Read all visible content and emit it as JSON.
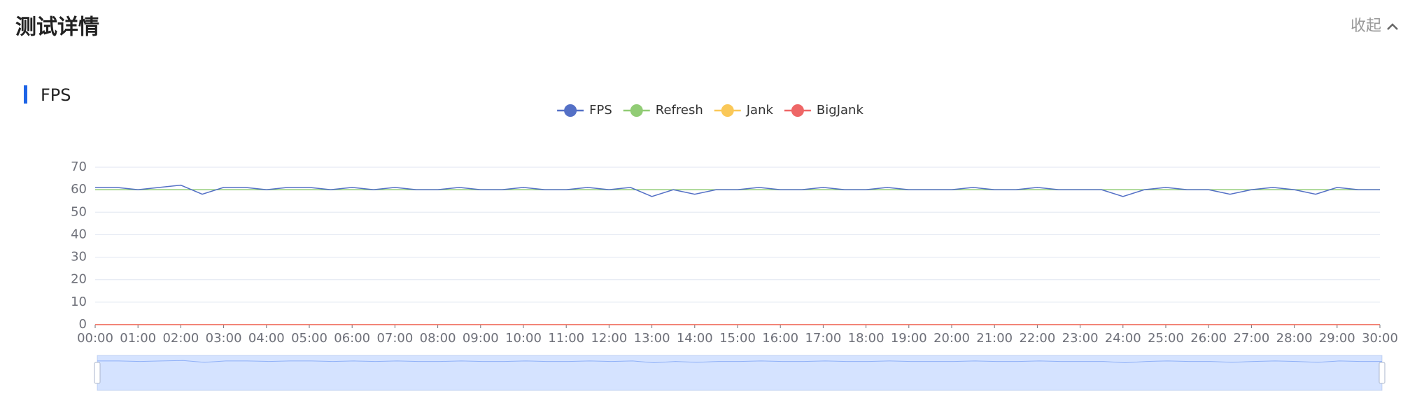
{
  "header": {
    "title": "测试详情",
    "collapse": "收起"
  },
  "section": {
    "title": "FPS"
  },
  "chart_data": {
    "type": "line",
    "x": [
      0,
      30,
      60,
      90,
      120,
      150,
      180,
      210,
      240,
      270,
      300,
      330,
      360,
      390,
      420,
      450,
      480,
      510,
      540,
      570,
      600,
      630,
      660,
      690,
      720,
      750,
      780,
      810,
      840,
      870,
      900,
      930,
      960,
      990,
      1020,
      1050,
      1080,
      1110,
      1140,
      1170,
      1200,
      1230,
      1260,
      1290,
      1320,
      1350,
      1380,
      1410,
      1440,
      1470,
      1500,
      1530,
      1560,
      1590,
      1620,
      1650,
      1680,
      1710,
      1740,
      1770,
      1800
    ],
    "series": [
      {
        "name": "FPS",
        "color": "#5470c6",
        "values": [
          61,
          61,
          60,
          61,
          62,
          58,
          61,
          61,
          60,
          61,
          61,
          60,
          61,
          60,
          61,
          60,
          60,
          61,
          60,
          60,
          61,
          60,
          60,
          61,
          60,
          61,
          57,
          60,
          58,
          60,
          60,
          61,
          60,
          60,
          61,
          60,
          60,
          61,
          60,
          60,
          60,
          61,
          60,
          60,
          61,
          60,
          60,
          60,
          57,
          60,
          61,
          60,
          60,
          58,
          60,
          61,
          60,
          58,
          61,
          60,
          60
        ]
      },
      {
        "name": "Refresh",
        "color": "#91cc75",
        "values": [
          60,
          60,
          60,
          60,
          60,
          60,
          60,
          60,
          60,
          60,
          60,
          60,
          60,
          60,
          60,
          60,
          60,
          60,
          60,
          60,
          60,
          60,
          60,
          60,
          60,
          60,
          60,
          60,
          60,
          60,
          60,
          60,
          60,
          60,
          60,
          60,
          60,
          60,
          60,
          60,
          60,
          60,
          60,
          60,
          60,
          60,
          60,
          60,
          60,
          60,
          60,
          60,
          60,
          60,
          60,
          60,
          60,
          60,
          60,
          60,
          60
        ]
      },
      {
        "name": "Jank",
        "color": "#fac858",
        "values": [
          0,
          0,
          0,
          0,
          0,
          0,
          0,
          0,
          0,
          0,
          0,
          0,
          0,
          0,
          0,
          0,
          0,
          0,
          0,
          0,
          0,
          0,
          0,
          0,
          0,
          0,
          0,
          0,
          0,
          0,
          0,
          0,
          0,
          0,
          0,
          0,
          0,
          0,
          0,
          0,
          0,
          0,
          0,
          0,
          0,
          0,
          0,
          0,
          0,
          0,
          0,
          0,
          0,
          0,
          0,
          0,
          0,
          0,
          0,
          0,
          0
        ]
      },
      {
        "name": "BigJank",
        "color": "#ee6666",
        "values": [
          0,
          0,
          0,
          0,
          0,
          0,
          0,
          0,
          0,
          0,
          0,
          0,
          0,
          0,
          0,
          0,
          0,
          0,
          0,
          0,
          0,
          0,
          0,
          0,
          0,
          0,
          0,
          0,
          0,
          0,
          0,
          0,
          0,
          0,
          0,
          0,
          0,
          0,
          0,
          0,
          0,
          0,
          0,
          0,
          0,
          0,
          0,
          0,
          0,
          0,
          0,
          0,
          0,
          0,
          0,
          0,
          0,
          0,
          0,
          0,
          0
        ]
      }
    ],
    "xlim": [
      0,
      1800
    ],
    "xticks": [
      {
        "value": 0,
        "label": "00:00"
      },
      {
        "value": 60,
        "label": "01:00"
      },
      {
        "value": 120,
        "label": "02:00"
      },
      {
        "value": 180,
        "label": "03:00"
      },
      {
        "value": 240,
        "label": "04:00"
      },
      {
        "value": 300,
        "label": "05:00"
      },
      {
        "value": 360,
        "label": "06:00"
      },
      {
        "value": 420,
        "label": "07:00"
      },
      {
        "value": 480,
        "label": "08:00"
      },
      {
        "value": 540,
        "label": "09:00"
      },
      {
        "value": 600,
        "label": "10:00"
      },
      {
        "value": 660,
        "label": "11:00"
      },
      {
        "value": 720,
        "label": "12:00"
      },
      {
        "value": 780,
        "label": "13:00"
      },
      {
        "value": 840,
        "label": "14:00"
      },
      {
        "value": 900,
        "label": "15:00"
      },
      {
        "value": 960,
        "label": "16:00"
      },
      {
        "value": 1020,
        "label": "17:00"
      },
      {
        "value": 1080,
        "label": "18:00"
      },
      {
        "value": 1140,
        "label": "19:00"
      },
      {
        "value": 1200,
        "label": "20:00"
      },
      {
        "value": 1260,
        "label": "21:00"
      },
      {
        "value": 1320,
        "label": "22:00"
      },
      {
        "value": 1380,
        "label": "23:00"
      },
      {
        "value": 1440,
        "label": "24:00"
      },
      {
        "value": 1500,
        "label": "25:00"
      },
      {
        "value": 1560,
        "label": "26:00"
      },
      {
        "value": 1620,
        "label": "27:00"
      },
      {
        "value": 1680,
        "label": "28:00"
      },
      {
        "value": 1740,
        "label": "29:00"
      },
      {
        "value": 1800,
        "label": "30:00"
      }
    ],
    "ylim": [
      0,
      70
    ],
    "yticks": [
      0,
      10,
      20,
      30,
      40,
      50,
      60,
      70
    ],
    "grid": true
  }
}
